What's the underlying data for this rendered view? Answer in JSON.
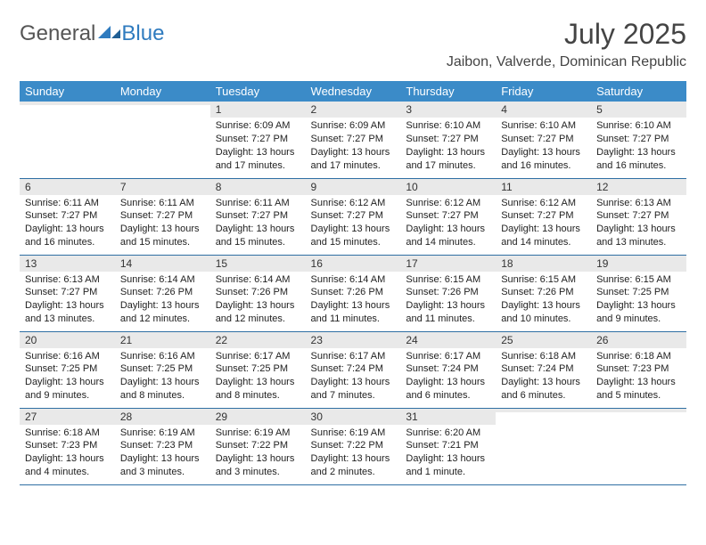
{
  "brand": {
    "part1": "General",
    "part2": "Blue"
  },
  "title": "July 2025",
  "location": "Jaibon, Valverde, Dominican Republic",
  "colors": {
    "header_bg": "#3b8bc8",
    "header_text": "#ffffff",
    "daynum_bg": "#e9e9e9",
    "row_border": "#2f6fa3",
    "logo_blue": "#2f7bbf",
    "body_text": "#222222",
    "page_bg": "#ffffff"
  },
  "weekdays": [
    "Sunday",
    "Monday",
    "Tuesday",
    "Wednesday",
    "Thursday",
    "Friday",
    "Saturday"
  ],
  "weeks": [
    [
      null,
      null,
      {
        "n": "1",
        "sunrise": "6:09 AM",
        "sunset": "7:27 PM",
        "daylight": "13 hours and 17 minutes."
      },
      {
        "n": "2",
        "sunrise": "6:09 AM",
        "sunset": "7:27 PM",
        "daylight": "13 hours and 17 minutes."
      },
      {
        "n": "3",
        "sunrise": "6:10 AM",
        "sunset": "7:27 PM",
        "daylight": "13 hours and 17 minutes."
      },
      {
        "n": "4",
        "sunrise": "6:10 AM",
        "sunset": "7:27 PM",
        "daylight": "13 hours and 16 minutes."
      },
      {
        "n": "5",
        "sunrise": "6:10 AM",
        "sunset": "7:27 PM",
        "daylight": "13 hours and 16 minutes."
      }
    ],
    [
      {
        "n": "6",
        "sunrise": "6:11 AM",
        "sunset": "7:27 PM",
        "daylight": "13 hours and 16 minutes."
      },
      {
        "n": "7",
        "sunrise": "6:11 AM",
        "sunset": "7:27 PM",
        "daylight": "13 hours and 15 minutes."
      },
      {
        "n": "8",
        "sunrise": "6:11 AM",
        "sunset": "7:27 PM",
        "daylight": "13 hours and 15 minutes."
      },
      {
        "n": "9",
        "sunrise": "6:12 AM",
        "sunset": "7:27 PM",
        "daylight": "13 hours and 15 minutes."
      },
      {
        "n": "10",
        "sunrise": "6:12 AM",
        "sunset": "7:27 PM",
        "daylight": "13 hours and 14 minutes."
      },
      {
        "n": "11",
        "sunrise": "6:12 AM",
        "sunset": "7:27 PM",
        "daylight": "13 hours and 14 minutes."
      },
      {
        "n": "12",
        "sunrise": "6:13 AM",
        "sunset": "7:27 PM",
        "daylight": "13 hours and 13 minutes."
      }
    ],
    [
      {
        "n": "13",
        "sunrise": "6:13 AM",
        "sunset": "7:27 PM",
        "daylight": "13 hours and 13 minutes."
      },
      {
        "n": "14",
        "sunrise": "6:14 AM",
        "sunset": "7:26 PM",
        "daylight": "13 hours and 12 minutes."
      },
      {
        "n": "15",
        "sunrise": "6:14 AM",
        "sunset": "7:26 PM",
        "daylight": "13 hours and 12 minutes."
      },
      {
        "n": "16",
        "sunrise": "6:14 AM",
        "sunset": "7:26 PM",
        "daylight": "13 hours and 11 minutes."
      },
      {
        "n": "17",
        "sunrise": "6:15 AM",
        "sunset": "7:26 PM",
        "daylight": "13 hours and 11 minutes."
      },
      {
        "n": "18",
        "sunrise": "6:15 AM",
        "sunset": "7:26 PM",
        "daylight": "13 hours and 10 minutes."
      },
      {
        "n": "19",
        "sunrise": "6:15 AM",
        "sunset": "7:25 PM",
        "daylight": "13 hours and 9 minutes."
      }
    ],
    [
      {
        "n": "20",
        "sunrise": "6:16 AM",
        "sunset": "7:25 PM",
        "daylight": "13 hours and 9 minutes."
      },
      {
        "n": "21",
        "sunrise": "6:16 AM",
        "sunset": "7:25 PM",
        "daylight": "13 hours and 8 minutes."
      },
      {
        "n": "22",
        "sunrise": "6:17 AM",
        "sunset": "7:25 PM",
        "daylight": "13 hours and 8 minutes."
      },
      {
        "n": "23",
        "sunrise": "6:17 AM",
        "sunset": "7:24 PM",
        "daylight": "13 hours and 7 minutes."
      },
      {
        "n": "24",
        "sunrise": "6:17 AM",
        "sunset": "7:24 PM",
        "daylight": "13 hours and 6 minutes."
      },
      {
        "n": "25",
        "sunrise": "6:18 AM",
        "sunset": "7:24 PM",
        "daylight": "13 hours and 6 minutes."
      },
      {
        "n": "26",
        "sunrise": "6:18 AM",
        "sunset": "7:23 PM",
        "daylight": "13 hours and 5 minutes."
      }
    ],
    [
      {
        "n": "27",
        "sunrise": "6:18 AM",
        "sunset": "7:23 PM",
        "daylight": "13 hours and 4 minutes."
      },
      {
        "n": "28",
        "sunrise": "6:19 AM",
        "sunset": "7:23 PM",
        "daylight": "13 hours and 3 minutes."
      },
      {
        "n": "29",
        "sunrise": "6:19 AM",
        "sunset": "7:22 PM",
        "daylight": "13 hours and 3 minutes."
      },
      {
        "n": "30",
        "sunrise": "6:19 AM",
        "sunset": "7:22 PM",
        "daylight": "13 hours and 2 minutes."
      },
      {
        "n": "31",
        "sunrise": "6:20 AM",
        "sunset": "7:21 PM",
        "daylight": "13 hours and 1 minute."
      },
      null,
      null
    ]
  ],
  "labels": {
    "sunrise": "Sunrise: ",
    "sunset": "Sunset: ",
    "daylight": "Daylight: "
  }
}
